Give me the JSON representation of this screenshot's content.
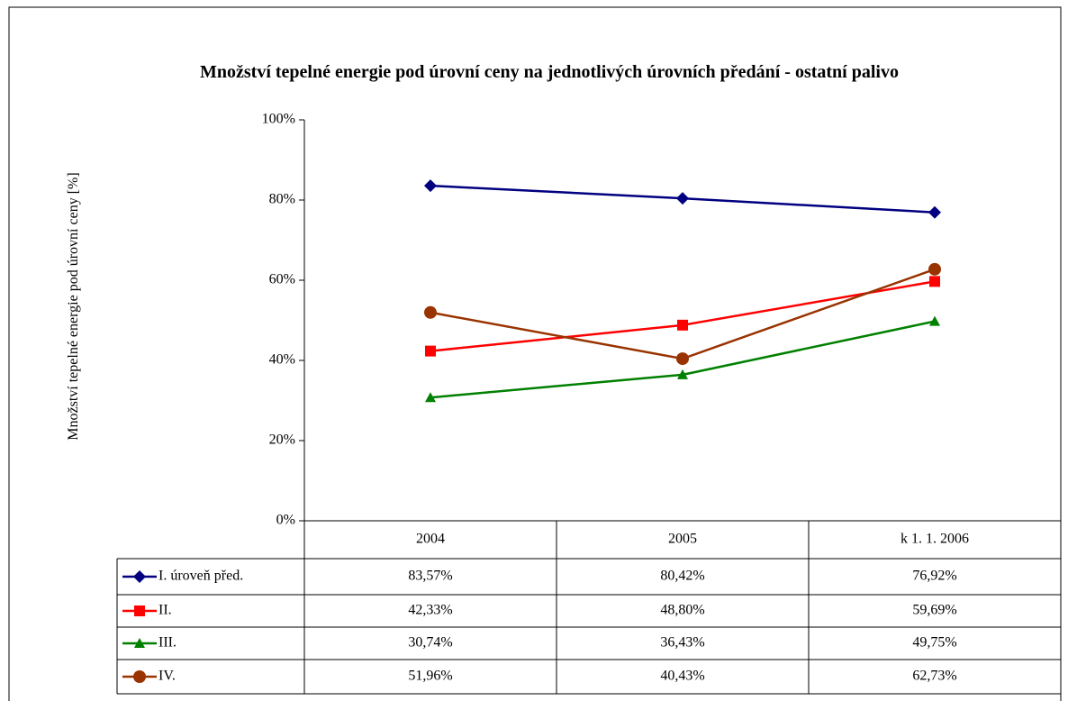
{
  "chart_data": {
    "type": "line",
    "title": "Množství tepelné energie pod úrovní ceny na jednotlivých úrovních předání - ostatní palivo",
    "y_label": "Množství tepelné energie pod úrovní ceny [%]",
    "categories": [
      "2004",
      "2005",
      "k 1. 1. 2006"
    ],
    "series": [
      {
        "name": "I. úroveň před.",
        "color": "#000080",
        "marker": "diamond",
        "values": [
          83.57,
          80.42,
          76.92
        ],
        "value_labels": [
          "83,57%",
          "80,42%",
          "76,92%"
        ]
      },
      {
        "name": "II.",
        "color": "#ff0000",
        "marker": "square",
        "values": [
          42.33,
          48.8,
          59.69
        ],
        "value_labels": [
          "42,33%",
          "48,80%",
          "59,69%"
        ]
      },
      {
        "name": "III.",
        "color": "#008000",
        "marker": "triangle",
        "values": [
          30.74,
          36.43,
          49.75
        ],
        "value_labels": [
          "30,74%",
          "36,43%",
          "49,75%"
        ]
      },
      {
        "name": "IV.",
        "color": "#993300",
        "marker": "circle",
        "values": [
          51.96,
          40.43,
          62.73
        ],
        "value_labels": [
          "51,96%",
          "40,43%",
          "62,73%"
        ]
      }
    ],
    "ylim": [
      0,
      100
    ],
    "yticks": [
      {
        "value": 0,
        "label": "0%"
      },
      {
        "value": 20,
        "label": "20%"
      },
      {
        "value": 40,
        "label": "40%"
      },
      {
        "value": 60,
        "label": "60%"
      },
      {
        "value": 80,
        "label": "80%"
      },
      {
        "value": 100,
        "label": "100%"
      }
    ],
    "grid": false
  }
}
